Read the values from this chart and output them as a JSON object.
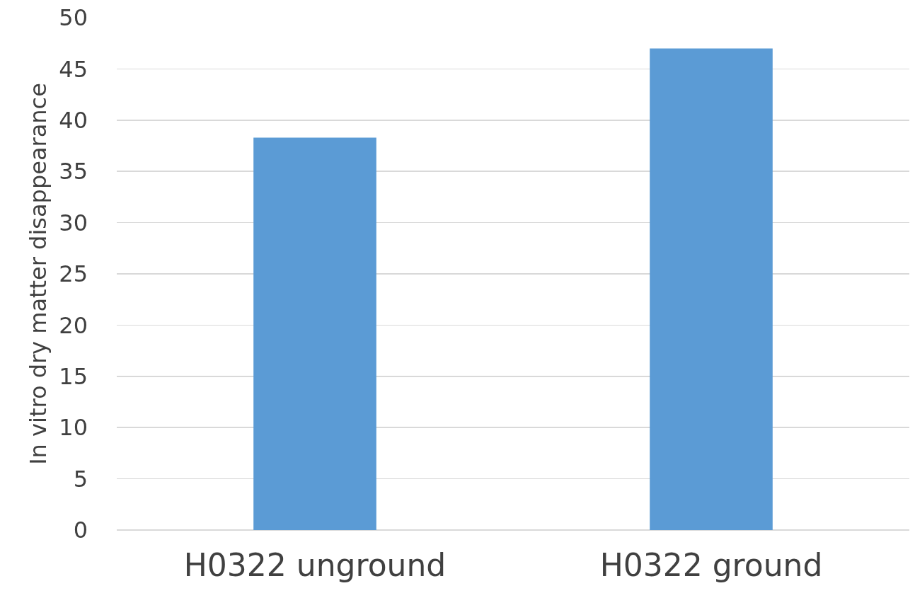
{
  "chart_data": {
    "type": "bar",
    "ylabel": "In vitro dry matter disappearance",
    "categories": [
      "H0322 unground",
      "H0322 ground"
    ],
    "values": [
      38.3,
      47.0
    ],
    "color": "#5b9bd5",
    "ylim": [
      0,
      50
    ],
    "yticks": [
      0,
      5,
      10,
      15,
      20,
      25,
      30,
      35,
      40,
      45,
      50
    ],
    "grid": "y"
  }
}
